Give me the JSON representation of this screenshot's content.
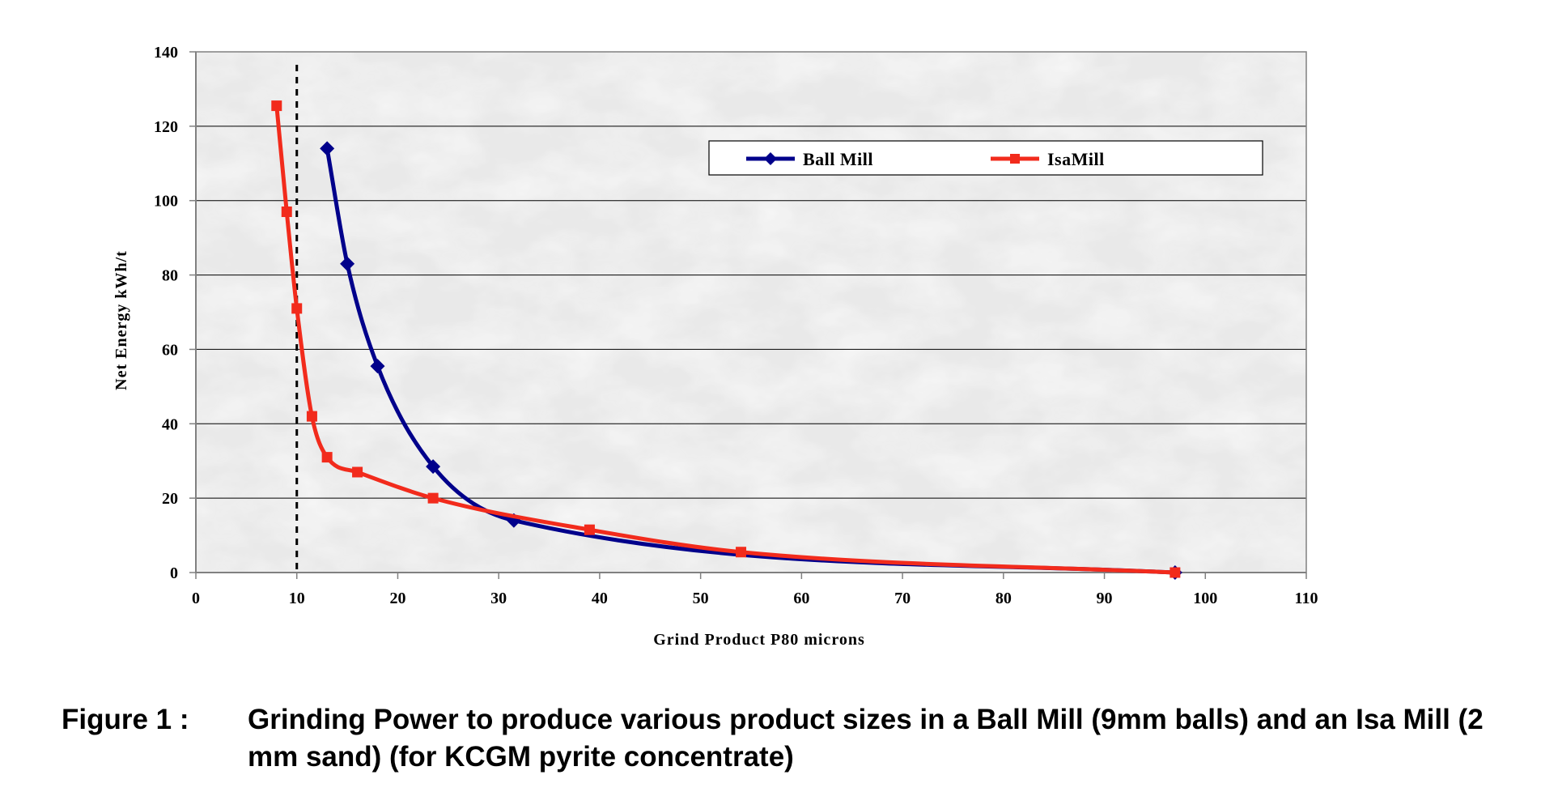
{
  "chart_data": {
    "type": "line",
    "xlabel": "Grind Product P80 microns",
    "ylabel": "Net Energy kWh/t",
    "xlim": [
      0,
      110
    ],
    "ylim": [
      0,
      140
    ],
    "x_ticks": [
      "0",
      "10",
      "20",
      "30",
      "40",
      "50",
      "60",
      "70",
      "80",
      "90",
      "100",
      "110"
    ],
    "y_ticks": [
      "0",
      "20",
      "40",
      "60",
      "80",
      "100",
      "120",
      "140"
    ],
    "grid": "horizontal",
    "legend_position": "top-right",
    "reference_line": {
      "x": 10,
      "style": "dashed",
      "color": "#000000"
    },
    "series": [
      {
        "name": "Ball Mill",
        "color": "#00008b",
        "marker": "diamond",
        "points": [
          {
            "x": 13,
            "y": 114
          },
          {
            "x": 15,
            "y": 83
          },
          {
            "x": 18,
            "y": 55.5
          },
          {
            "x": 23.5,
            "y": 28.5
          },
          {
            "x": 31.5,
            "y": 14
          },
          {
            "x": 97,
            "y": 0
          }
        ]
      },
      {
        "name": "IsaMill",
        "color": "#f22b1c",
        "marker": "square",
        "points": [
          {
            "x": 8,
            "y": 125.5
          },
          {
            "x": 9,
            "y": 97
          },
          {
            "x": 10,
            "y": 71
          },
          {
            "x": 11.5,
            "y": 42
          },
          {
            "x": 13,
            "y": 31
          },
          {
            "x": 16,
            "y": 27
          },
          {
            "x": 23.5,
            "y": 20
          },
          {
            "x": 39,
            "y": 11.5
          },
          {
            "x": 54,
            "y": 5.5
          },
          {
            "x": 97,
            "y": 0
          }
        ]
      }
    ]
  },
  "caption": {
    "label": "Figure 1 :",
    "text": "Grinding Power to produce various product sizes in a Ball Mill (9mm balls) and an Isa Mill (2 mm sand) (for KCGM pyrite concentrate)"
  }
}
